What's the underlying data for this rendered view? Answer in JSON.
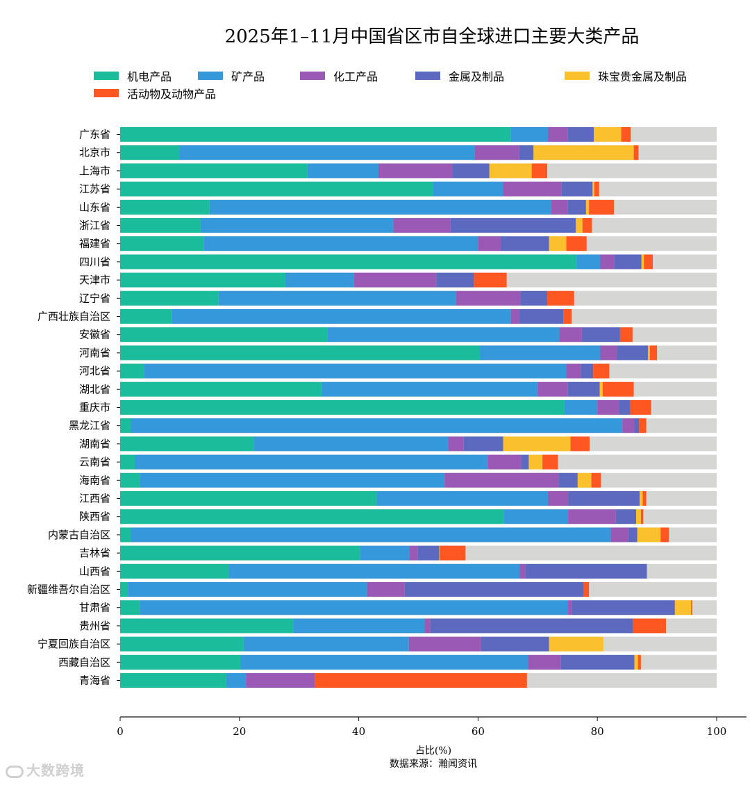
{
  "watermark": "大数跨境",
  "chart_data": {
    "type": "bar",
    "orientation": "horizontal",
    "stacked": true,
    "title": "2025年1–11月中国省区市自全球进口主要大类产品",
    "xlabel": "占比(%)",
    "source": "数据来源：瀚闻资讯",
    "xlim": [
      0,
      100
    ],
    "xticks": [
      0,
      20,
      40,
      60,
      80,
      100
    ],
    "grid": false,
    "legend_position": "top",
    "categories": [
      "广东省",
      "北京市",
      "上海市",
      "江苏省",
      "山东省",
      "浙江省",
      "福建省",
      "四川省",
      "天津市",
      "辽宁省",
      "广西壮族自治区",
      "安徽省",
      "河南省",
      "河北省",
      "湖北省",
      "重庆市",
      "黑龙江省",
      "湖南省",
      "云南省",
      "海南省",
      "江西省",
      "陕西省",
      "内蒙古自治区",
      "吉林省",
      "山西省",
      "新疆维吾尔自治区",
      "甘肃省",
      "贵州省",
      "宁夏回族自治区",
      "西藏自治区",
      "青海省"
    ],
    "series": [
      {
        "name": "机电产品",
        "color": "#1abc9c",
        "values": [
          65.5,
          9.9,
          31.4,
          52.5,
          15.0,
          13.5,
          14.0,
          76.5,
          27.7,
          16.5,
          8.7,
          34.8,
          60.3,
          4.0,
          33.8,
          74.5,
          1.8,
          22.4,
          2.5,
          3.3,
          43.0,
          64.3,
          1.8,
          40.2,
          18.2,
          1.3,
          3.3,
          29.0,
          20.7,
          20.2,
          17.8
        ]
      },
      {
        "name": "矿产品",
        "color": "#3498db",
        "values": [
          6.2,
          49.5,
          11.9,
          11.7,
          57.2,
          32.3,
          46.0,
          4.0,
          11.5,
          39.8,
          56.8,
          38.8,
          20.2,
          70.8,
          36.2,
          5.5,
          82.4,
          32.6,
          59.1,
          51.1,
          28.7,
          10.8,
          80.4,
          8.3,
          48.8,
          40.1,
          71.8,
          22.0,
          27.7,
          48.2,
          3.3
        ]
      },
      {
        "name": "化工产品",
        "color": "#9b59b6",
        "values": [
          3.3,
          7.5,
          12.4,
          9.8,
          2.8,
          9.6,
          3.8,
          2.3,
          13.8,
          10.8,
          1.4,
          3.8,
          2.8,
          2.4,
          5.0,
          3.7,
          2.0,
          2.6,
          5.6,
          19.1,
          3.4,
          8.0,
          3.0,
          1.4,
          0.9,
          6.3,
          0.6,
          1.0,
          12.1,
          5.5,
          11.5
        ]
      },
      {
        "name": "金属及制品",
        "color": "#5b6abf",
        "values": [
          4.4,
          2.4,
          6.2,
          5.2,
          3.1,
          21.0,
          8.1,
          4.6,
          6.3,
          4.5,
          7.4,
          6.4,
          5.2,
          2.1,
          5.4,
          1.8,
          0.8,
          6.6,
          1.3,
          3.2,
          12.0,
          3.4,
          1.5,
          3.6,
          20.4,
          30.0,
          17.3,
          34.0,
          11.4,
          12.3,
          0.0
        ]
      },
      {
        "name": "珠宝贵金属及制品",
        "color": "#fbc02d",
        "values": [
          4.6,
          16.8,
          7.1,
          0.3,
          0.5,
          1.1,
          2.9,
          0.4,
          0.0,
          0.0,
          0.0,
          0.0,
          0.3,
          0.0,
          0.5,
          0.0,
          0.0,
          11.3,
          2.3,
          2.3,
          0.5,
          0.8,
          3.9,
          0.1,
          0.0,
          0.0,
          2.7,
          0.0,
          9.1,
          0.6,
          0.0
        ]
      },
      {
        "name": "活动物及动物产品",
        "color": "#ff5722",
        "values": [
          1.6,
          0.8,
          2.6,
          0.8,
          4.2,
          1.6,
          3.4,
          1.5,
          5.5,
          4.5,
          1.4,
          2.1,
          1.2,
          2.7,
          5.2,
          3.5,
          1.2,
          3.2,
          2.6,
          1.6,
          0.6,
          0.4,
          1.4,
          4.3,
          0.0,
          0.9,
          0.2,
          5.5,
          0.0,
          0.5,
          35.6
        ]
      }
    ]
  }
}
